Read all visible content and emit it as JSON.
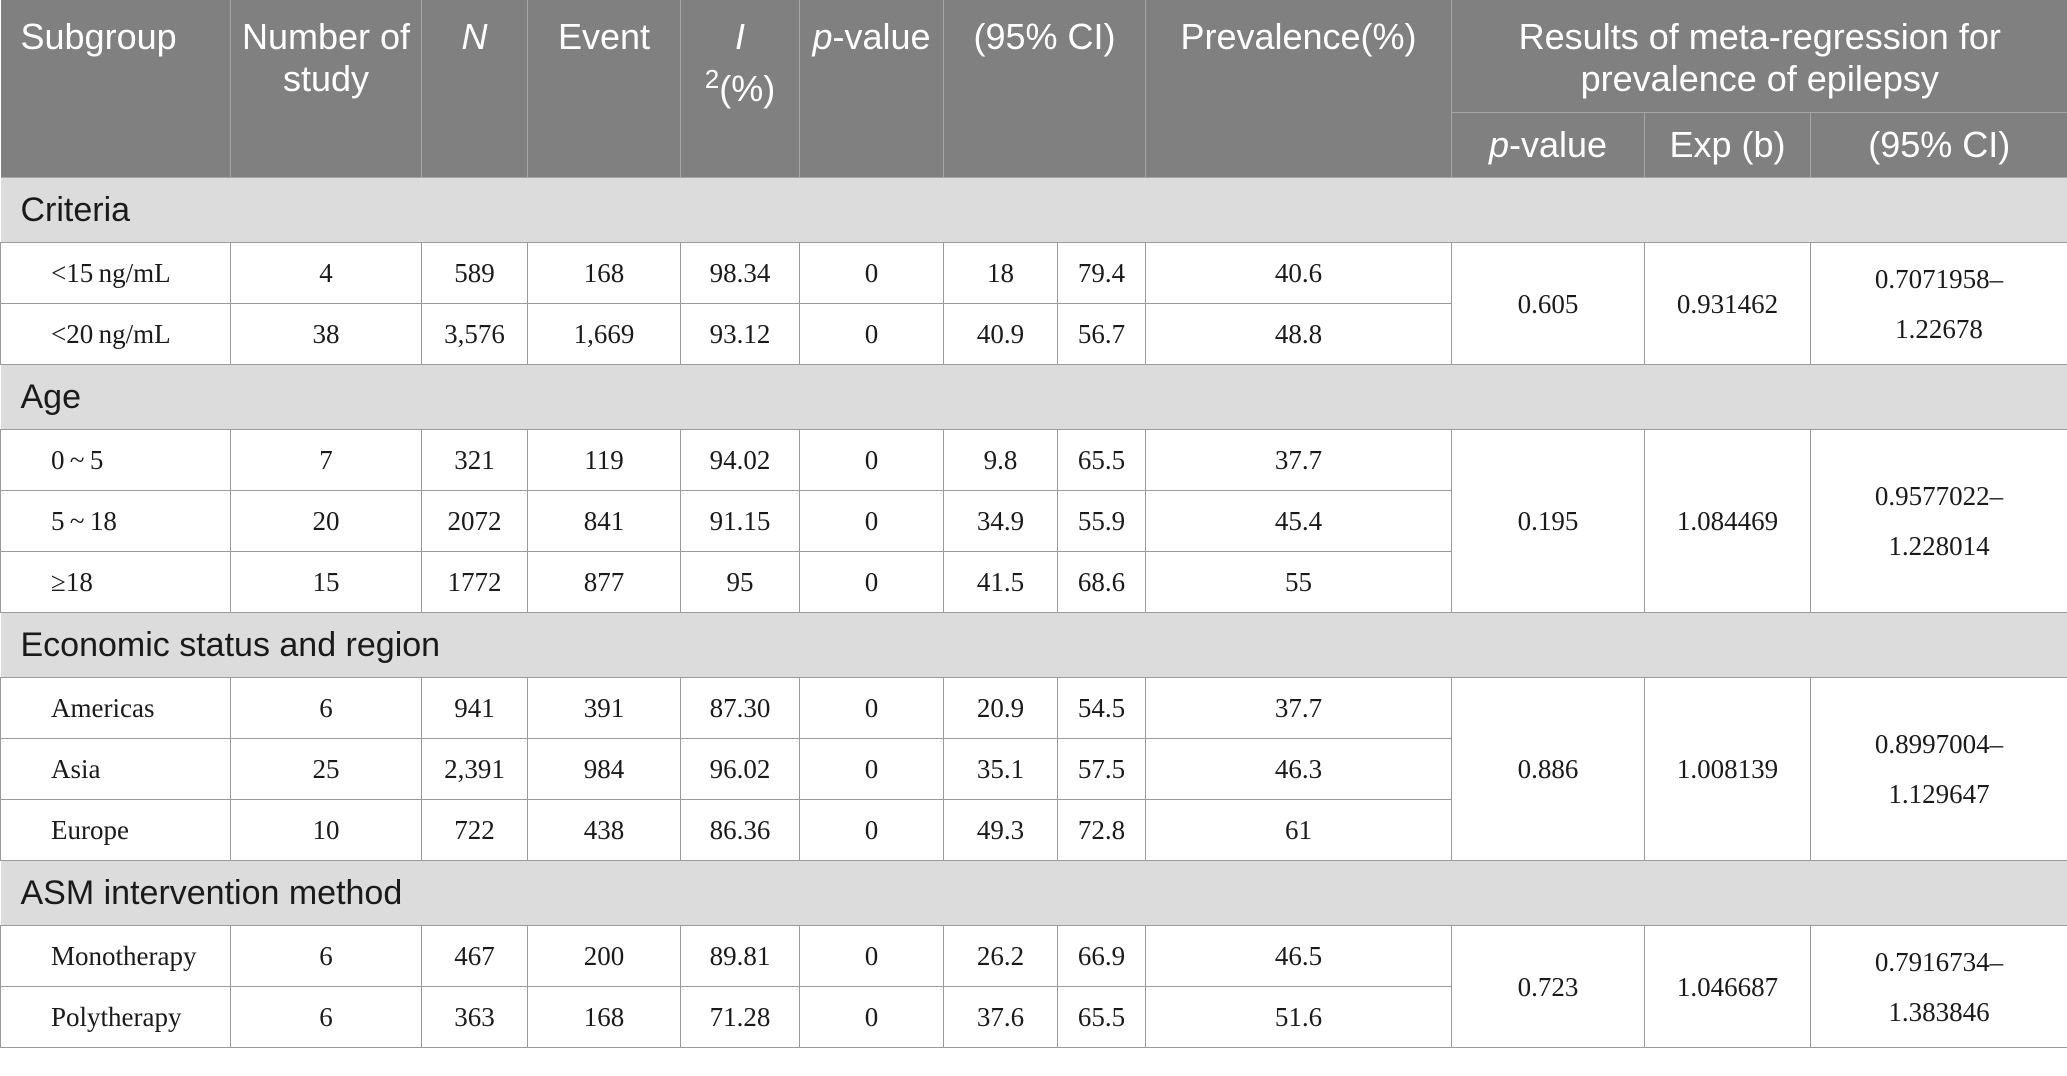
{
  "header": {
    "subgroup": "Subgroup",
    "number_of_study": "Number of study",
    "n": "N",
    "event": "Event",
    "i2_italic": "I",
    "i2_rest": "(%)",
    "i2_sup": "2",
    "pvalue_italic": "p",
    "pvalue_rest": "-value",
    "ci": "(95% CI)",
    "prevalence": "Prevalence(%)",
    "meta_regression": "Results of meta-regression for prevalence of epilepsy",
    "sub_pvalue_italic": "p",
    "sub_pvalue_rest": "-value",
    "sub_expb": "Exp (b)",
    "sub_ci": "(95% CI)"
  },
  "sections": [
    {
      "title": "Criteria",
      "rows": [
        {
          "label": "<15 ng/mL",
          "studies": "4",
          "n": "589",
          "event": "168",
          "i2": "98.34",
          "p": "0",
          "ci_low": "18",
          "ci_high": "79.4",
          "prevalence": "40.6"
        },
        {
          "label": "<20 ng/mL",
          "studies": "38",
          "n": "3,576",
          "event": "1,669",
          "i2": "93.12",
          "p": "0",
          "ci_low": "40.9",
          "ci_high": "56.7",
          "prevalence": "48.8"
        }
      ],
      "regression": {
        "p": "0.605",
        "expb": "0.931462",
        "ci_line1": "0.7071958–",
        "ci_line2": "1.22678"
      }
    },
    {
      "title": "Age",
      "rows": [
        {
          "label": "0 ~ 5",
          "studies": "7",
          "n": "321",
          "event": "119",
          "i2": "94.02",
          "p": "0",
          "ci_low": "9.8",
          "ci_high": "65.5",
          "prevalence": "37.7"
        },
        {
          "label": "5 ~ 18",
          "studies": "20",
          "n": "2072",
          "event": "841",
          "i2": "91.15",
          "p": "0",
          "ci_low": "34.9",
          "ci_high": "55.9",
          "prevalence": "45.4"
        },
        {
          "label": "≥18",
          "studies": "15",
          "n": "1772",
          "event": "877",
          "i2": "95",
          "p": "0",
          "ci_low": "41.5",
          "ci_high": "68.6",
          "prevalence": "55"
        }
      ],
      "regression": {
        "p": "0.195",
        "expb": "1.084469",
        "ci_line1": "0.9577022–",
        "ci_line2": "1.228014"
      }
    },
    {
      "title": "Economic status and region",
      "rows": [
        {
          "label": "Americas",
          "studies": "6",
          "n": "941",
          "event": "391",
          "i2": "87.30",
          "p": "0",
          "ci_low": "20.9",
          "ci_high": "54.5",
          "prevalence": "37.7"
        },
        {
          "label": "Asia",
          "studies": "25",
          "n": "2,391",
          "event": "984",
          "i2": "96.02",
          "p": "0",
          "ci_low": "35.1",
          "ci_high": "57.5",
          "prevalence": "46.3"
        },
        {
          "label": "Europe",
          "studies": "10",
          "n": "722",
          "event": "438",
          "i2": "86.36",
          "p": "0",
          "ci_low": "49.3",
          "ci_high": "72.8",
          "prevalence": "61"
        }
      ],
      "regression": {
        "p": "0.886",
        "expb": "1.008139",
        "ci_line1": "0.8997004–",
        "ci_line2": "1.129647"
      }
    },
    {
      "title": "ASM intervention method",
      "rows": [
        {
          "label": "Monotherapy",
          "studies": "6",
          "n": "467",
          "event": "200",
          "i2": "89.81",
          "p": "0",
          "ci_low": "26.2",
          "ci_high": "66.9",
          "prevalence": "46.5"
        },
        {
          "label": "Polytherapy",
          "studies": "6",
          "n": "363",
          "event": "168",
          "i2": "71.28",
          "p": "0",
          "ci_low": "37.6",
          "ci_high": "65.5",
          "prevalence": "51.6"
        }
      ],
      "regression": {
        "p": "0.723",
        "expb": "1.046687",
        "ci_line1": "0.7916734–",
        "ci_line2": "1.383846"
      }
    }
  ]
}
